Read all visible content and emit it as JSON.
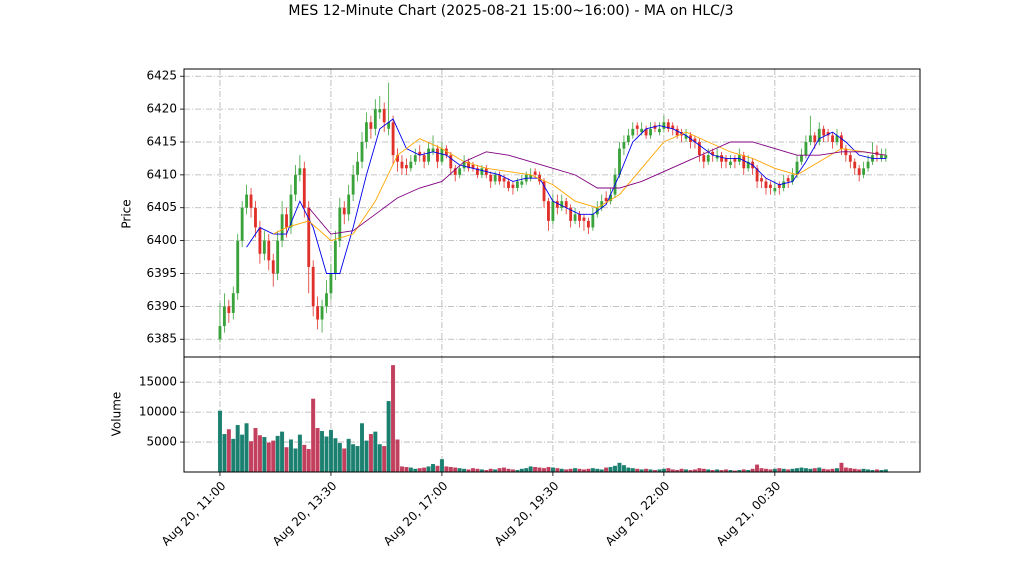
{
  "chart_data": {
    "type": "candlestick",
    "title": "MES 12-Minute Chart (2025-08-21 15:00~16:00) - MA on HLC/3",
    "ylabel": "Price",
    "up_color": "#3aa23a",
    "down_color": "#e0302a",
    "xlim": [
      -8.1,
      157.7
    ],
    "xticks": [
      {
        "value": 0,
        "label": "Aug 20, 11:00"
      },
      {
        "value": 25,
        "label": "Aug 20, 13:30"
      },
      {
        "value": 50,
        "label": "Aug 20, 17:00"
      },
      {
        "value": 75,
        "label": "Aug 20, 19:30"
      },
      {
        "value": 100,
        "label": "Aug 20, 22:00"
      },
      {
        "value": 125,
        "label": "Aug 21, 00:30"
      }
    ],
    "ylim": [
      6382.3,
      6426.1
    ],
    "yticks": [
      6385,
      6390,
      6395,
      6400,
      6405,
      6410,
      6415,
      6420,
      6425
    ],
    "grid": true,
    "ohlc": [
      [
        6385,
        6390.5,
        6384.5,
        6387
      ],
      [
        6387,
        6392,
        6386,
        6390
      ],
      [
        6390,
        6391,
        6387.5,
        6389
      ],
      [
        6389,
        6393,
        6388,
        6392
      ],
      [
        6392,
        6401,
        6391,
        6400
      ],
      [
        6400,
        6406,
        6399,
        6405
      ],
      [
        6405,
        6408.5,
        6404,
        6407
      ],
      [
        6407,
        6408,
        6403.5,
        6405
      ],
      [
        6405,
        6406,
        6400.5,
        6402
      ],
      [
        6402,
        6403,
        6396.5,
        6398
      ],
      [
        6398,
        6401.5,
        6397,
        6400
      ],
      [
        6400,
        6401,
        6395.5,
        6397
      ],
      [
        6397,
        6398,
        6393,
        6395
      ],
      [
        6395,
        6401.5,
        6394,
        6400
      ],
      [
        6400,
        6406,
        6399,
        6404
      ],
      [
        6404,
        6405,
        6400.5,
        6402
      ],
      [
        6402,
        6408.5,
        6401,
        6407
      ],
      [
        6407,
        6411.5,
        6406,
        6410
      ],
      [
        6410,
        6413,
        6409,
        6411
      ],
      [
        6411,
        6412,
        6403.5,
        6405
      ],
      [
        6405,
        6406,
        6392,
        6396
      ],
      [
        6396,
        6397,
        6388.5,
        6390
      ],
      [
        6390,
        6391.5,
        6386.5,
        6388
      ],
      [
        6388,
        6391,
        6386,
        6390
      ],
      [
        6390,
        6394,
        6389,
        6392
      ],
      [
        6392,
        6396.5,
        6391,
        6395
      ],
      [
        6395,
        6401.5,
        6394,
        6400
      ],
      [
        6400,
        6406.5,
        6399,
        6405
      ],
      [
        6405,
        6406,
        6402.5,
        6404
      ],
      [
        6404,
        6408.5,
        6403,
        6407
      ],
      [
        6407,
        6411.5,
        6406,
        6410
      ],
      [
        6410,
        6413.5,
        6409,
        6412
      ],
      [
        6412,
        6416.5,
        6411,
        6415
      ],
      [
        6415,
        6419.5,
        6414,
        6418
      ],
      [
        6418,
        6419,
        6415.5,
        6417
      ],
      [
        6417,
        6421.5,
        6416,
        6420
      ],
      [
        6419.5,
        6422,
        6418.5,
        6420
      ],
      [
        6420,
        6421,
        6416.5,
        6418
      ],
      [
        6417,
        6424,
        6416,
        6418
      ],
      [
        6418,
        6419,
        6411.5,
        6413
      ],
      [
        6413,
        6414,
        6410.5,
        6412
      ],
      [
        6412,
        6413,
        6410,
        6411
      ],
      [
        6411.5,
        6412.5,
        6410,
        6411
      ],
      [
        6411,
        6413,
        6410.5,
        6412
      ],
      [
        6412,
        6414,
        6411.5,
        6413
      ],
      [
        6413.5,
        6414.5,
        6412,
        6413
      ],
      [
        6413,
        6413.5,
        6411,
        6412
      ],
      [
        6412,
        6415,
        6411.5,
        6414
      ],
      [
        6413.5,
        6416,
        6413,
        6414
      ],
      [
        6414,
        6414.5,
        6411,
        6412
      ],
      [
        6412,
        6415,
        6411.5,
        6414
      ],
      [
        6414,
        6414.5,
        6412.5,
        6413
      ],
      [
        6413,
        6413.5,
        6410,
        6411
      ],
      [
        6411,
        6411.5,
        6409,
        6410
      ],
      [
        6410,
        6411.5,
        6409.5,
        6411
      ],
      [
        6411,
        6413,
        6410.5,
        6412
      ],
      [
        6412,
        6412.5,
        6410.5,
        6411
      ],
      [
        6411.5,
        6412,
        6410.5,
        6411
      ],
      [
        6411,
        6411.5,
        6409.5,
        6410
      ],
      [
        6410,
        6411.5,
        6409.5,
        6411
      ],
      [
        6411,
        6411.5,
        6409.5,
        6410
      ],
      [
        6410,
        6410.5,
        6408,
        6409
      ],
      [
        6409,
        6410.5,
        6408.5,
        6410
      ],
      [
        6410,
        6410.5,
        6408.5,
        6409
      ],
      [
        6409.5,
        6410,
        6408,
        6409
      ],
      [
        6409,
        6409.5,
        6407.5,
        6408
      ],
      [
        6408.5,
        6409,
        6407,
        6408
      ],
      [
        6408,
        6409.5,
        6407.5,
        6409
      ],
      [
        6408.5,
        6410,
        6408,
        6409
      ],
      [
        6409,
        6410.5,
        6408.5,
        6410
      ],
      [
        6409.5,
        6411,
        6409,
        6410
      ],
      [
        6410.5,
        6411,
        6409.5,
        6410
      ],
      [
        6410,
        6410.5,
        6408.5,
        6409
      ],
      [
        6409,
        6409.5,
        6405,
        6406
      ],
      [
        6406,
        6406.5,
        6401.5,
        6403
      ],
      [
        6403,
        6407,
        6402.5,
        6406
      ],
      [
        6406,
        6407,
        6404,
        6405
      ],
      [
        6405,
        6407,
        6404.5,
        6406
      ],
      [
        6406,
        6406.5,
        6404,
        6405
      ],
      [
        6405,
        6405.5,
        6402,
        6403
      ],
      [
        6403,
        6405,
        6402.5,
        6404
      ],
      [
        6404,
        6404.5,
        6402,
        6403
      ],
      [
        6403.5,
        6404,
        6401.5,
        6403
      ],
      [
        6403,
        6403.5,
        6401,
        6402
      ],
      [
        6402,
        6405,
        6401.5,
        6404
      ],
      [
        6404,
        6406,
        6403.5,
        6405
      ],
      [
        6405,
        6407,
        6404.5,
        6406
      ],
      [
        6406.5,
        6407.5,
        6405.5,
        6406
      ],
      [
        6406,
        6408,
        6405.5,
        6407
      ],
      [
        6407,
        6411,
        6406.5,
        6410
      ],
      [
        6410,
        6415,
        6409.5,
        6414
      ],
      [
        6414,
        6416,
        6413,
        6415
      ],
      [
        6415,
        6417,
        6414.5,
        6416
      ],
      [
        6416,
        6418,
        6415.5,
        6417
      ],
      [
        6417.5,
        6418,
        6416,
        6417
      ],
      [
        6416.5,
        6418,
        6416,
        6417
      ],
      [
        6417,
        6417.5,
        6415.5,
        6416
      ],
      [
        6416,
        6418,
        6415.5,
        6417
      ],
      [
        6417.5,
        6418,
        6416.5,
        6417
      ],
      [
        6416.5,
        6418,
        6416,
        6417
      ],
      [
        6417,
        6419,
        6416.5,
        6418
      ],
      [
        6418,
        6418.5,
        6416.5,
        6417
      ],
      [
        6417.5,
        6418,
        6416,
        6417
      ],
      [
        6417,
        6417.5,
        6415.5,
        6416
      ],
      [
        6416.5,
        6417,
        6415,
        6416
      ],
      [
        6415.5,
        6417,
        6415,
        6416
      ],
      [
        6416,
        6416.5,
        6414,
        6415
      ],
      [
        6415.5,
        6416,
        6414,
        6415
      ],
      [
        6415,
        6415.5,
        6412,
        6413
      ],
      [
        6413,
        6413.5,
        6411,
        6412
      ],
      [
        6412,
        6414,
        6411.5,
        6413
      ],
      [
        6413.5,
        6414,
        6412,
        6413
      ],
      [
        6412.5,
        6414,
        6412,
        6413
      ],
      [
        6413,
        6413.5,
        6411,
        6412
      ],
      [
        6412.5,
        6413,
        6411,
        6412
      ],
      [
        6411.5,
        6413,
        6411,
        6412
      ],
      [
        6412.5,
        6413,
        6411,
        6412
      ],
      [
        6412,
        6414,
        6411.5,
        6413
      ],
      [
        6413,
        6413.5,
        6410,
        6411
      ],
      [
        6411,
        6413,
        6410.5,
        6412
      ],
      [
        6412,
        6412.5,
        6410,
        6411
      ],
      [
        6411,
        6411.5,
        6408,
        6409
      ],
      [
        6409.5,
        6410,
        6408,
        6409
      ],
      [
        6409,
        6409.5,
        6407,
        6408
      ],
      [
        6408.5,
        6409,
        6407,
        6408
      ],
      [
        6407.5,
        6409,
        6407,
        6408
      ],
      [
        6408.5,
        6409,
        6407,
        6408
      ],
      [
        6408,
        6410,
        6407.5,
        6409
      ],
      [
        6409.5,
        6410,
        6408,
        6409
      ],
      [
        6409,
        6411,
        6408.5,
        6410
      ],
      [
        6410,
        6413,
        6409.5,
        6412
      ],
      [
        6412,
        6414,
        6411.5,
        6413
      ],
      [
        6413,
        6416,
        6412.5,
        6415
      ],
      [
        6415,
        6419,
        6414.5,
        6416
      ],
      [
        6416,
        6416.5,
        6414,
        6415
      ],
      [
        6415,
        6418,
        6414.5,
        6417
      ],
      [
        6417,
        6417.5,
        6415,
        6416
      ],
      [
        6416.5,
        6417,
        6415,
        6416
      ],
      [
        6416,
        6416.5,
        6414,
        6415
      ],
      [
        6415,
        6417,
        6414.5,
        6416
      ],
      [
        6416,
        6416.5,
        6413,
        6414
      ],
      [
        6414,
        6414.5,
        6412,
        6413
      ],
      [
        6413,
        6413.5,
        6411,
        6412
      ],
      [
        6412,
        6412.5,
        6410,
        6411
      ],
      [
        6411,
        6411.5,
        6409,
        6410
      ],
      [
        6410,
        6412,
        6409.5,
        6411
      ],
      [
        6411,
        6413,
        6410.5,
        6412
      ],
      [
        6412,
        6415,
        6411.5,
        6413
      ],
      [
        6413.5,
        6414.5,
        6412,
        6413
      ],
      [
        6412.5,
        6414,
        6412,
        6413
      ],
      [
        6412.5,
        6414,
        6412,
        6413
      ]
    ],
    "ma": [
      {
        "color": "#0000ee",
        "x": [
          6,
          9,
          12,
          15,
          18,
          21,
          24,
          27,
          30,
          33,
          36,
          39,
          42,
          45,
          48,
          51,
          54,
          57,
          60,
          63,
          66,
          69,
          72,
          75,
          78,
          81,
          84,
          87,
          90,
          93,
          96,
          99,
          102,
          105,
          108,
          111,
          114,
          117,
          120,
          123,
          126,
          129,
          132,
          135,
          138,
          141,
          144,
          147,
          150
        ],
        "values": [
          6399,
          6402,
          6401,
          6401,
          6406,
          6402,
          6395,
          6395,
          6402,
          6410,
          6417,
          6418.5,
          6414,
          6413,
          6413.5,
          6413,
          6411.5,
          6411,
          6410.5,
          6410,
          6409,
          6409.5,
          6409.5,
          6406,
          6405,
          6404,
          6404,
          6405.5,
          6410,
          6415,
          6417,
          6417.5,
          6417,
          6416,
          6414.5,
          6413,
          6412.5,
          6412.5,
          6411.5,
          6409.5,
          6408.5,
          6409,
          6412,
          6415.5,
          6416.5,
          6415,
          6413,
          6412.5,
          6412.5
        ]
      },
      {
        "color": "#ffa500",
        "x": [
          12,
          15,
          20,
          25,
          30,
          35,
          40,
          45,
          50,
          55,
          60,
          65,
          70,
          75,
          80,
          85,
          90,
          95,
          100,
          105,
          110,
          115,
          120,
          125,
          130,
          135,
          140,
          145,
          150
        ],
        "values": [
          6401,
          6402,
          6403,
          6400,
          6401,
          6406,
          6413,
          6415.5,
          6414,
          6412,
          6411,
          6410.5,
          6410,
          6408.5,
          6406,
          6405,
          6407,
          6411,
          6415,
          6416.5,
          6415,
          6413.5,
          6412.5,
          6411,
          6410,
          6412,
          6414,
          6413.5,
          6413
        ]
      },
      {
        "color": "#800080",
        "x": [
          20,
          25,
          30,
          35,
          40,
          45,
          50,
          55,
          60,
          65,
          70,
          75,
          80,
          85,
          90,
          95,
          100,
          105,
          110,
          115,
          120,
          125,
          130,
          135,
          140,
          145,
          150
        ],
        "values": [
          6405,
          6401,
          6401.5,
          6404,
          6406.5,
          6408,
          6409,
          6412,
          6413.5,
          6413,
          6412,
          6411,
          6410,
          6408,
          6408,
          6409,
          6410.5,
          6412,
          6413.5,
          6415,
          6415,
          6414,
          6413,
          6413,
          6413.5,
          6413.5,
          6413
        ]
      }
    ],
    "volume": {
      "ylabel": "Volume",
      "ylim": [
        0,
        19200
      ],
      "yticks": [
        5000,
        10000,
        15000
      ],
      "up_color": "#1b8070",
      "down_color": "#c23f5e",
      "values": [
        10200,
        6300,
        7100,
        5500,
        7800,
        6200,
        8100,
        5100,
        7300,
        6100,
        5800,
        4900,
        5200,
        6000,
        6700,
        4100,
        5400,
        3900,
        6200,
        4500,
        3800,
        12200,
        7300,
        6800,
        5900,
        7000,
        5600,
        4800,
        3900,
        5500,
        4600,
        4300,
        8100,
        5200,
        6300,
        6700,
        4600,
        4300,
        11800,
        17800,
        5400,
        900,
        800,
        700,
        500,
        600,
        700,
        900,
        1300,
        1000,
        2100,
        900,
        800,
        700,
        600,
        500,
        400,
        600,
        500,
        400,
        300,
        500,
        400,
        600,
        700,
        500,
        400,
        300,
        500,
        600,
        900,
        800,
        700,
        600,
        800,
        700,
        600,
        500,
        400,
        500,
        600,
        500,
        400,
        500,
        600,
        500,
        400,
        700,
        800,
        1000,
        1500,
        1100,
        700,
        600,
        500,
        400,
        500,
        400,
        300,
        400,
        500,
        600,
        400,
        300,
        500,
        400,
        300,
        400,
        600,
        500,
        400,
        300,
        400,
        300,
        400,
        300,
        200,
        300,
        400,
        300,
        500,
        1200,
        600,
        500,
        400,
        500,
        600,
        500,
        400,
        500,
        600,
        700,
        600,
        500,
        600,
        700,
        500,
        400,
        500,
        600,
        1500,
        700,
        600,
        500,
        400,
        500,
        400,
        300,
        400,
        300,
        400
      ]
    }
  }
}
